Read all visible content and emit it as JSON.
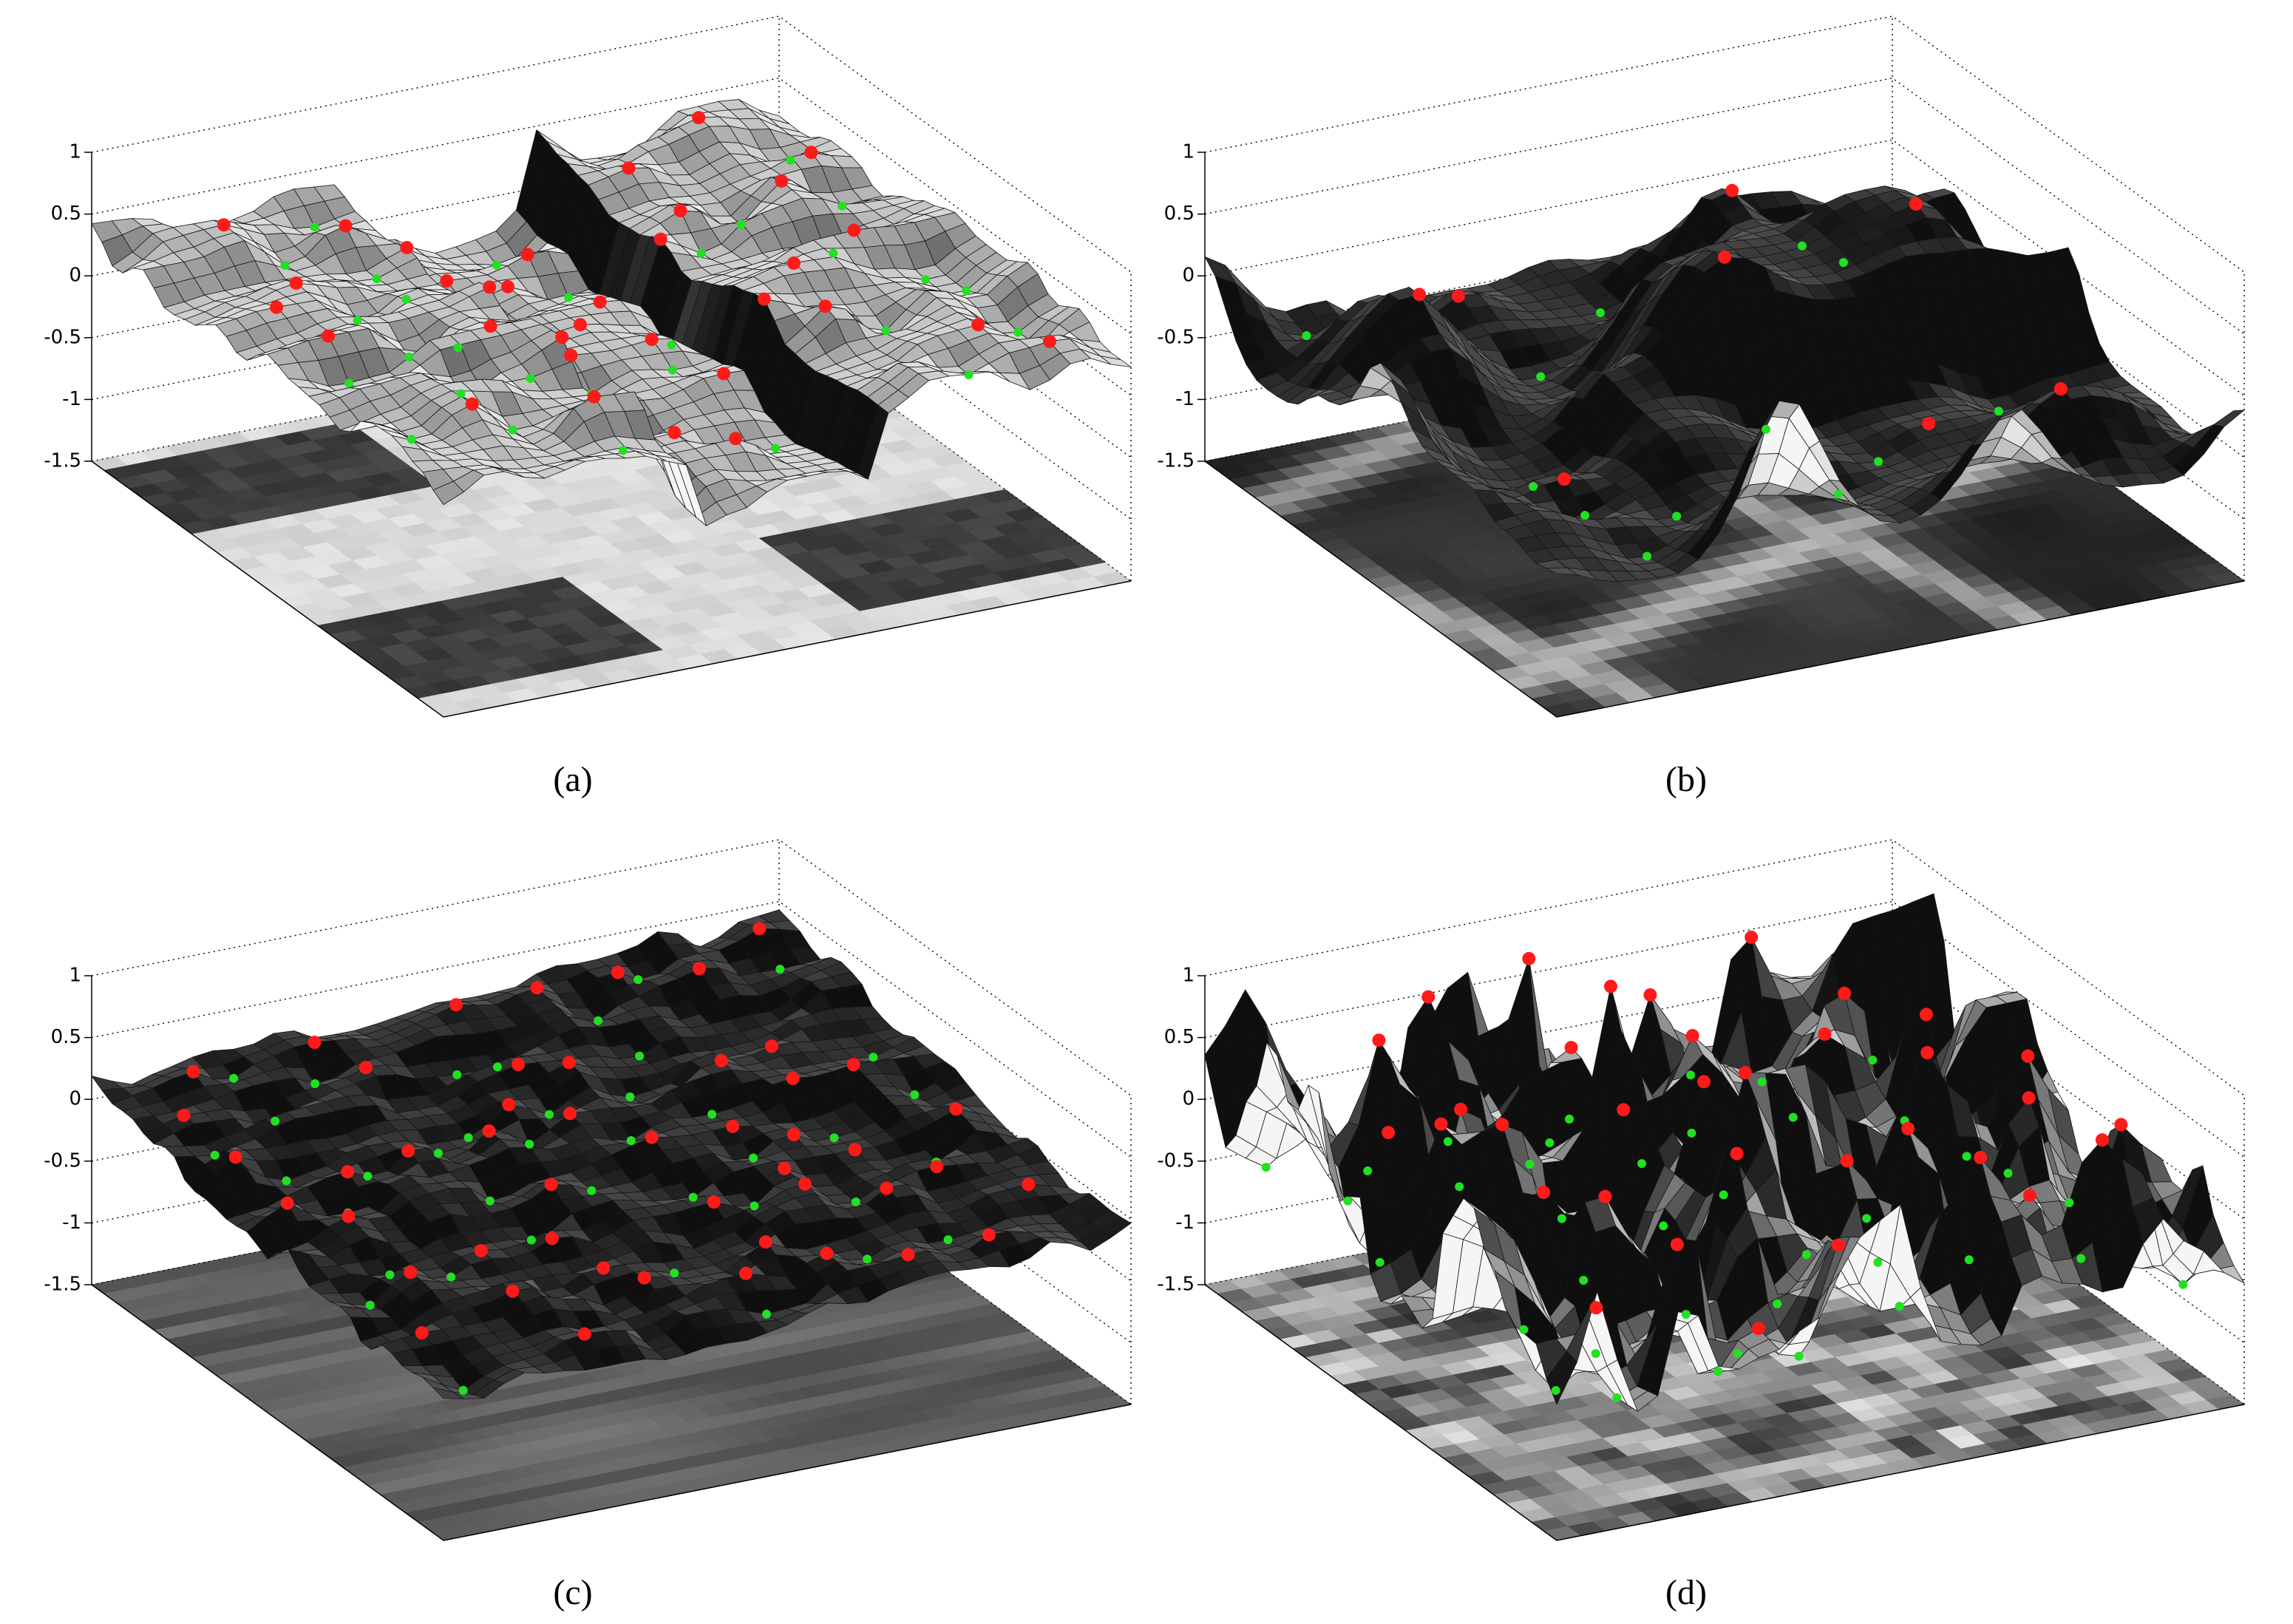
{
  "chart_data": [
    {
      "type": "surface",
      "caption": "(a)",
      "zlim": [
        -1.5,
        1
      ],
      "zticks": [
        1,
        0.5,
        0,
        -0.5,
        -1,
        -1.5
      ]
    },
    {
      "type": "surface",
      "caption": "(b)",
      "zlim": [
        -1.5,
        1
      ],
      "zticks": [
        1,
        0.5,
        0,
        -0.5,
        -1,
        -1.5
      ]
    },
    {
      "type": "surface",
      "caption": "(c)",
      "zlim": [
        -1.5,
        1
      ],
      "zticks": [
        1,
        0.5,
        0,
        -0.5,
        -1,
        -1.5
      ]
    },
    {
      "type": "surface",
      "caption": "(d)",
      "zlim": [
        -1.5,
        1
      ],
      "zticks": [
        1,
        0.5,
        0,
        -0.5,
        -1,
        -1.5
      ]
    }
  ]
}
